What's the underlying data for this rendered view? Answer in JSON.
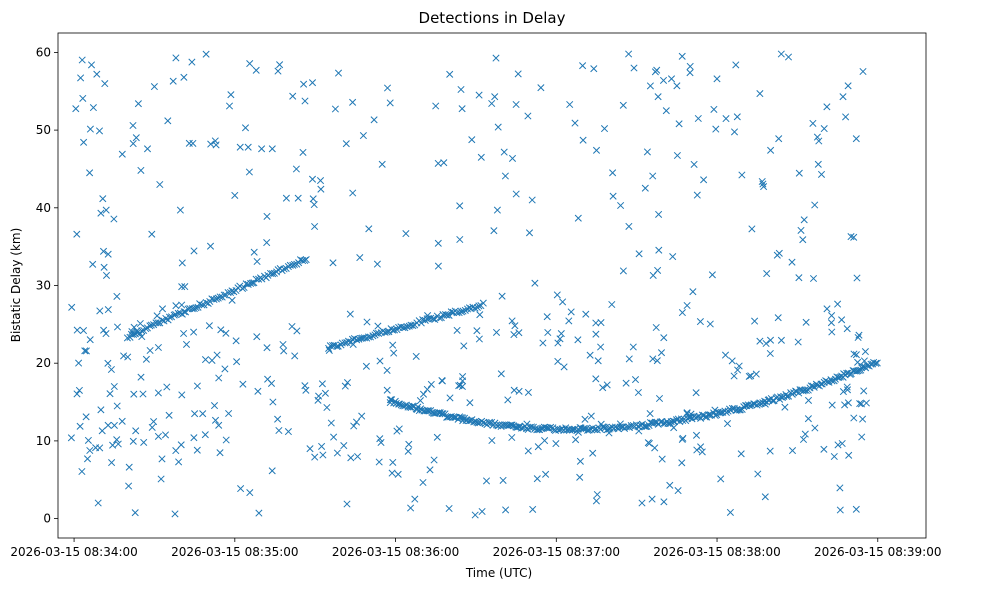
{
  "chart_data": {
    "type": "scatter",
    "title": "Detections in Delay",
    "xlabel": "Time (UTC)",
    "ylabel": "Bistatic Delay (km)",
    "marker": "x",
    "color": "#1f77b4",
    "x_unit": "seconds since 2026-03-15 08:34:00 UTC",
    "xlim": [
      -6,
      318
    ],
    "ylim": [
      -2.5,
      62.5
    ],
    "xticks": [
      0,
      60,
      120,
      180,
      240,
      300,
      360
    ],
    "xtick_labels": [
      "2026-03-15 08:34:00",
      "2026-03-15 08:35:00",
      "2026-03-15 08:36:00",
      "2026-03-15 08:37:00",
      "2026-03-15 08:38:00",
      "2026-03-15 08:39:00"
    ],
    "yticks": [
      0,
      10,
      20,
      30,
      40,
      50,
      60
    ],
    "ytick_labels": [
      "0",
      "10",
      "20",
      "30",
      "40",
      "50",
      "60"
    ],
    "tracks": [
      {
        "name": "track-1",
        "t_start": 20,
        "t_end": 87,
        "t_step": 0.75,
        "y_start": 23.4,
        "y_end": 33.5,
        "curvature": 0
      },
      {
        "name": "track-2",
        "t_start": 95,
        "t_end": 153,
        "t_step": 0.75,
        "y_start": 22.0,
        "y_end": 27.6,
        "curvature": 0
      },
      {
        "name": "track-3",
        "t_start": 118,
        "t_end": 300,
        "t_step": 0.6,
        "y_start": 15.2,
        "y_end": 20.2,
        "t_min": 184,
        "y_min": 11.5
      }
    ],
    "noise_seed": 20260315,
    "noise_count": 440,
    "points": [
      [
        -1,
        10.4
      ],
      [
        1,
        36.6
      ],
      [
        2,
        16.5
      ],
      [
        3.5,
        24.2
      ],
      [
        4,
        21.6
      ],
      [
        4.5,
        13.1
      ],
      [
        5,
        7.7
      ],
      [
        6.5,
        58.4
      ],
      [
        8.5,
        57.2
      ],
      [
        9,
        2.0
      ],
      [
        9.5,
        49.9
      ],
      [
        10,
        39.3
      ],
      [
        10.5,
        11.3
      ],
      [
        11,
        34.4
      ],
      [
        12,
        39.7
      ],
      [
        14,
        7.2
      ],
      [
        15,
        17.0
      ],
      [
        16,
        28.6
      ],
      [
        16.5,
        9.6
      ],
      [
        18,
        46.9
      ],
      [
        20,
        20.8
      ],
      [
        22,
        50.6
      ],
      [
        23,
        11.3
      ],
      [
        24,
        53.4
      ],
      [
        25,
        18.2
      ],
      [
        26,
        9.8
      ],
      [
        27,
        20.5
      ],
      [
        29,
        36.6
      ],
      [
        30,
        55.6
      ],
      [
        31,
        26.1
      ],
      [
        32,
        43.0
      ],
      [
        32.5,
        5.1
      ],
      [
        35,
        51.2
      ],
      [
        37,
        56.3
      ],
      [
        38,
        59.3
      ],
      [
        38,
        27.4
      ],
      [
        39,
        7.3
      ],
      [
        40,
        9.5
      ],
      [
        41,
        56.8
      ],
      [
        43,
        48.3
      ],
      [
        45,
        13.5
      ],
      [
        46,
        8.8
      ],
      [
        48,
        13.5
      ],
      [
        49,
        10.8
      ],
      [
        51,
        48.2
      ],
      [
        53,
        48.1
      ],
      [
        54,
        18.1
      ],
      [
        58,
        53.1
      ],
      [
        59,
        28.1
      ],
      [
        60,
        41.6
      ],
      [
        62,
        47.8
      ],
      [
        63,
        17.3
      ],
      [
        64,
        50.3
      ],
      [
        65,
        47.8
      ],
      [
        68,
        57.7
      ],
      [
        69,
        0.7
      ],
      [
        70,
        47.6
      ],
      [
        72,
        38.9
      ],
      [
        72,
        22.0
      ],
      [
        74,
        47.6
      ],
      [
        78,
        22.4
      ],
      [
        80,
        11.2
      ],
      [
        83,
        45.0
      ],
      [
        89,
        56.1
      ],
      [
        92,
        43.5
      ],
      [
        96,
        12.3
      ],
      [
        104,
        41.9
      ],
      [
        108,
        49.3
      ],
      [
        110,
        37.3
      ],
      [
        115,
        45.6
      ],
      [
        118,
        53.5
      ],
      [
        121,
        5.7
      ],
      [
        135,
        53.1
      ],
      [
        136,
        32.5
      ],
      [
        138,
        45.8
      ],
      [
        140,
        1.3
      ],
      [
        152,
        46.5
      ],
      [
        157,
        54.3
      ],
      [
        158,
        39.7
      ],
      [
        161,
        44.1
      ],
      [
        165,
        53.3
      ],
      [
        171,
        41.0
      ],
      [
        172,
        30.3
      ],
      [
        175,
        22.6
      ],
      [
        176,
        5.7
      ],
      [
        185,
        53.3
      ],
      [
        187,
        50.9
      ],
      [
        190,
        48.7
      ],
      [
        191,
        26.3
      ],
      [
        194,
        57.9
      ],
      [
        195,
        47.4
      ],
      [
        198,
        50.2
      ],
      [
        199,
        17.2
      ],
      [
        201,
        44.5
      ],
      [
        204,
        40.3
      ],
      [
        205,
        53.2
      ],
      [
        207,
        59.8
      ],
      [
        209,
        58.0
      ],
      [
        212,
        2.0
      ],
      [
        214,
        47.2
      ],
      [
        216,
        44.1
      ],
      [
        217,
        57.5
      ],
      [
        218,
        54.3
      ],
      [
        220,
        56.4
      ],
      [
        223,
        56.6
      ],
      [
        225,
        55.7
      ],
      [
        227,
        59.5
      ],
      [
        230,
        58.2
      ],
      [
        231,
        29.2
      ],
      [
        233,
        51.5
      ],
      [
        235,
        43.6
      ],
      [
        240,
        56.6
      ],
      [
        245,
        0.8
      ],
      [
        247,
        58.4
      ],
      [
        252,
        18.3
      ],
      [
        256,
        54.7
      ],
      [
        258,
        2.8
      ],
      [
        260,
        47.4
      ],
      [
        263,
        48.9
      ],
      [
        264,
        59.8
      ],
      [
        268,
        33.0
      ],
      [
        272,
        35.9
      ],
      [
        276,
        30.9
      ],
      [
        278,
        48.6
      ],
      [
        279,
        44.3
      ],
      [
        280,
        50.2
      ],
      [
        281,
        53.0
      ],
      [
        283,
        14.6
      ],
      [
        285,
        27.6
      ],
      [
        286,
        1.1
      ],
      [
        287,
        54.3
      ],
      [
        288,
        51.7
      ],
      [
        290,
        36.3
      ],
      [
        291,
        36.2
      ],
      [
        292,
        48.9
      ],
      [
        293,
        23.6
      ],
      [
        294,
        10.5
      ],
      [
        295,
        20.3
      ],
      [
        292,
        1.2
      ]
    ]
  }
}
